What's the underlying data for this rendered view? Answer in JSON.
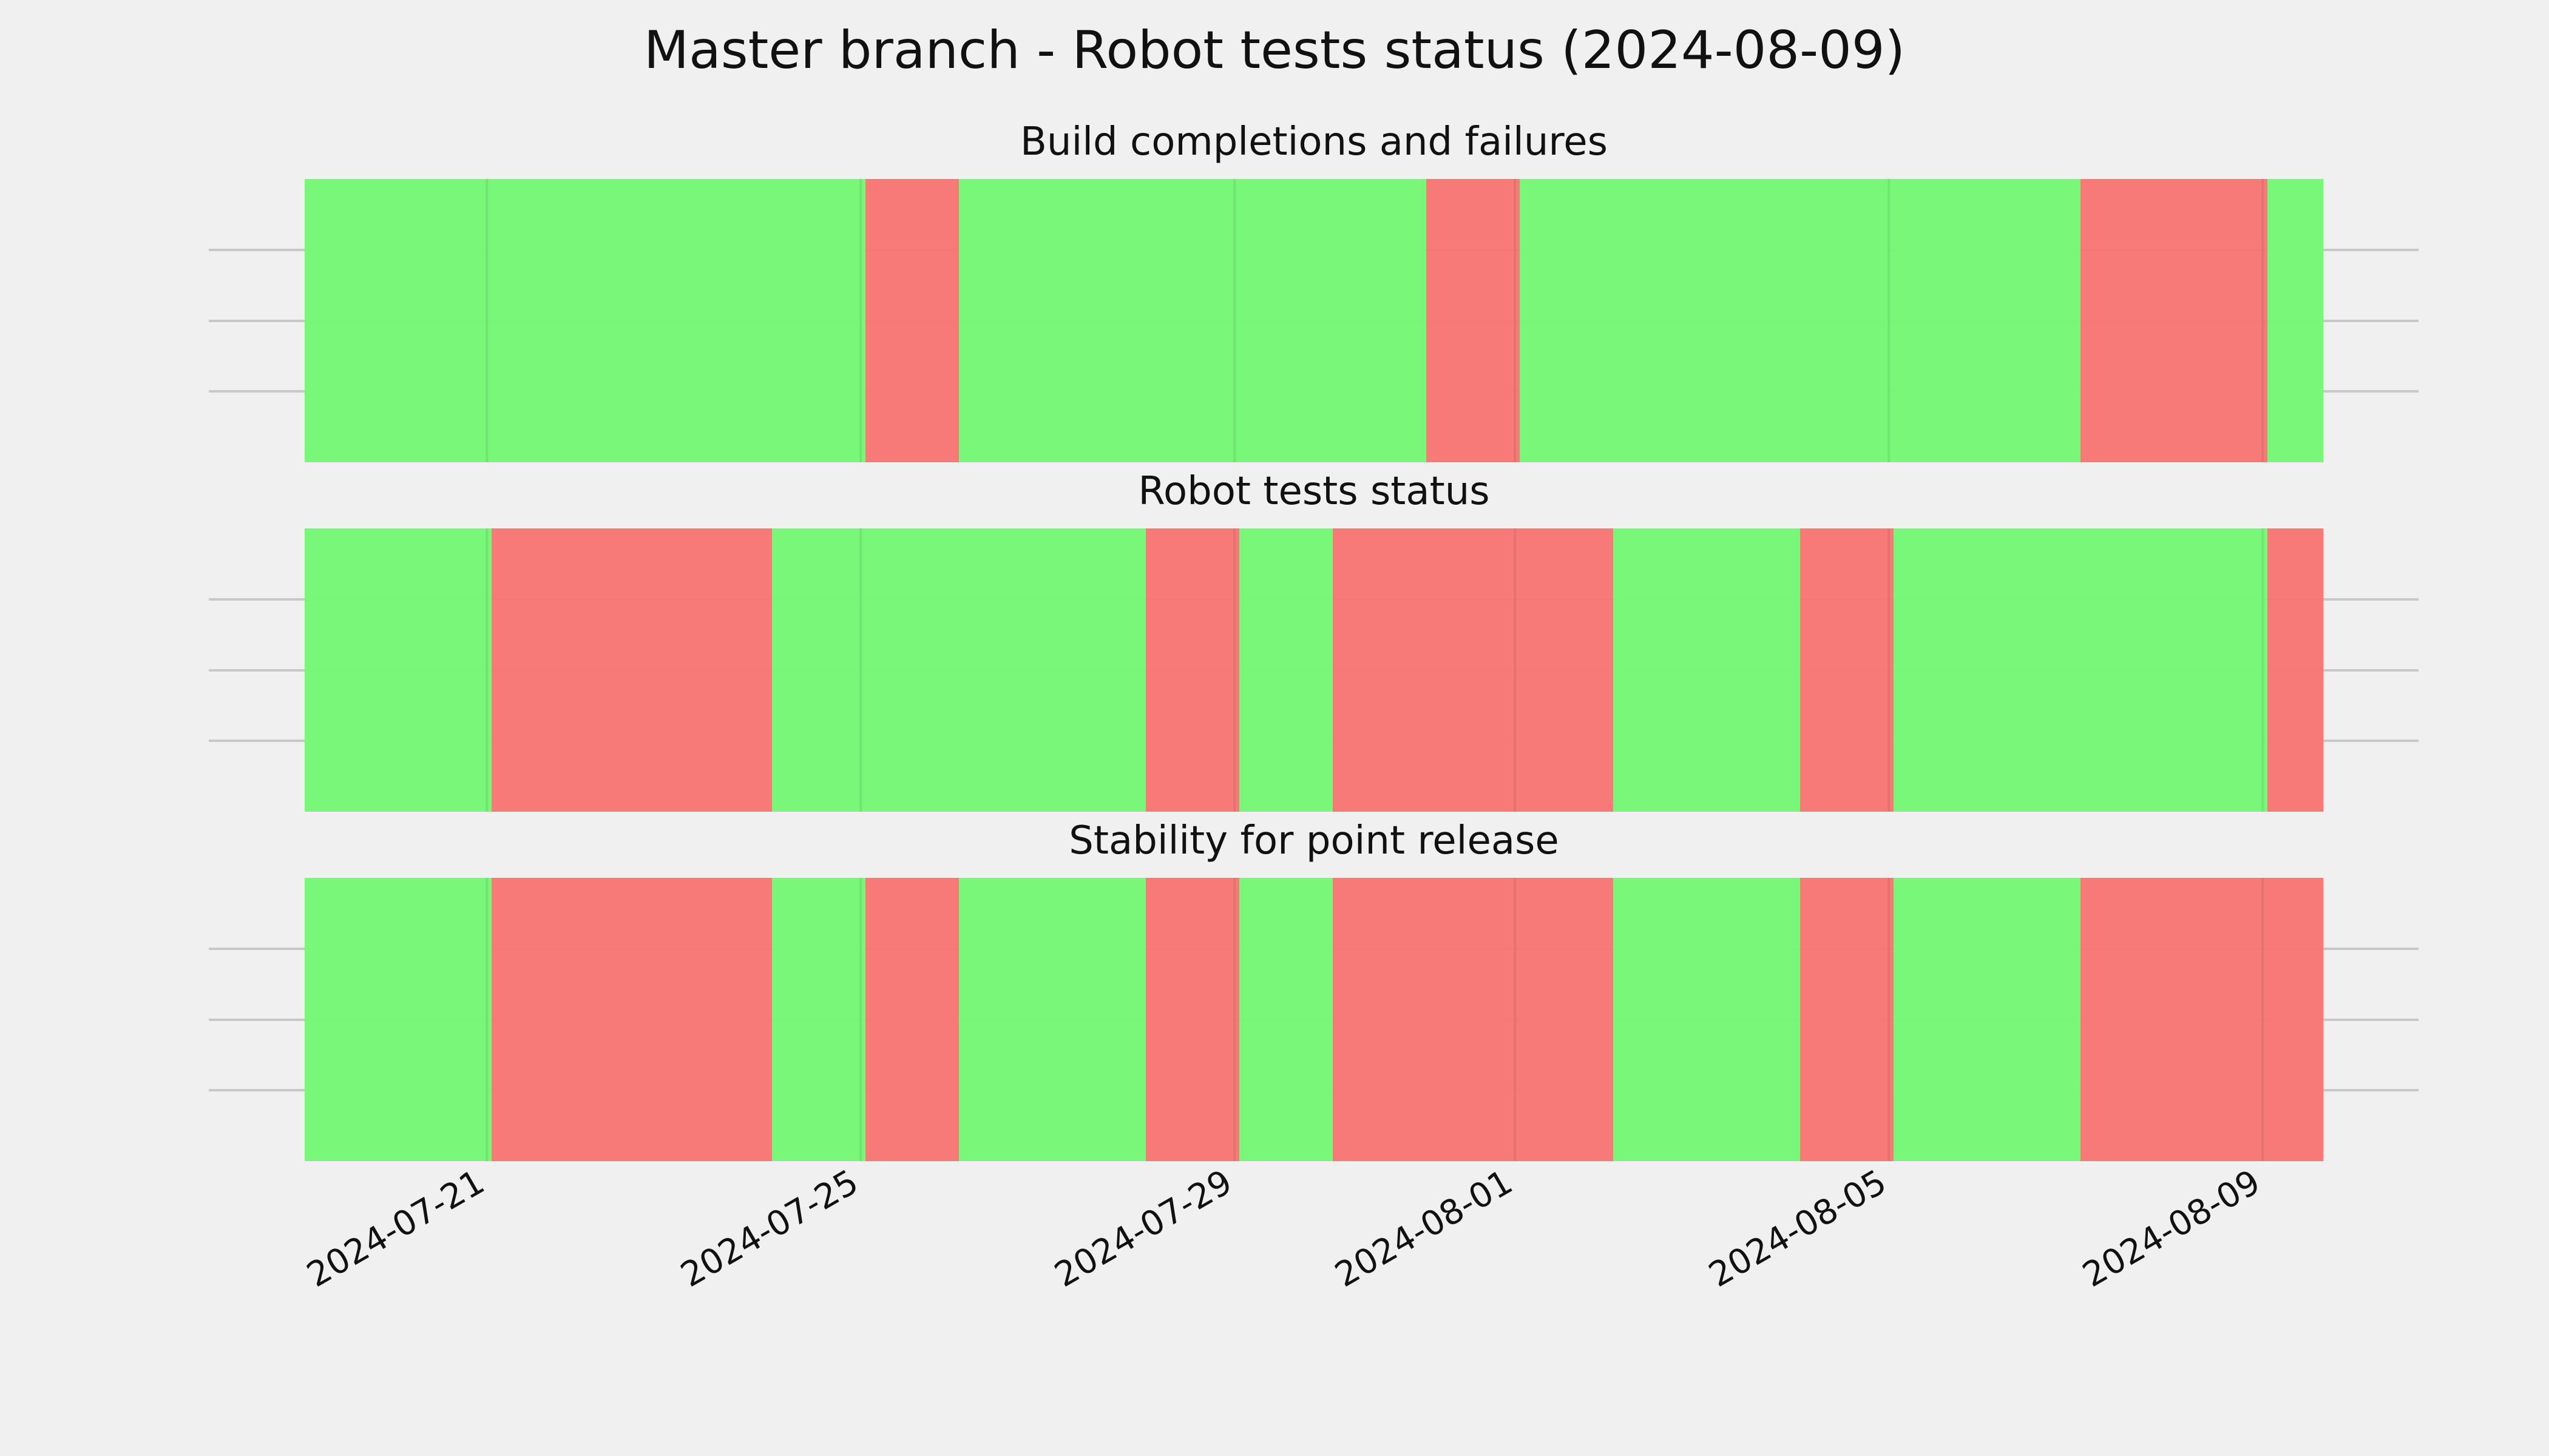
{
  "chart_data": {
    "type": "timeline",
    "title": "Master branch - Robot tests status (2024-08-09)",
    "x_range": [
      "2024-07-20",
      "2024-08-10"
    ],
    "x_ticks": [
      "2024-07-21",
      "2024-07-25",
      "2024-07-29",
      "2024-08-01",
      "2024-08-05",
      "2024-08-09"
    ],
    "tick_positions": {
      "2024-07-21": 1.95,
      "2024-07-25": 5.95,
      "2024-07-29": 9.95,
      "2024-08-01": 12.95,
      "2024-08-05": 16.95,
      "2024-08-09": 20.95
    },
    "colors": {
      "pass": "#76f776",
      "fail": "#f77776"
    },
    "panels": [
      {
        "title": "Build completions and failures",
        "segments": [
          {
            "start": 0.0,
            "end": 6.0,
            "status": "pass"
          },
          {
            "start": 6.0,
            "end": 7.0,
            "status": "fail"
          },
          {
            "start": 7.0,
            "end": 12.0,
            "status": "pass"
          },
          {
            "start": 12.0,
            "end": 13.0,
            "status": "fail"
          },
          {
            "start": 13.0,
            "end": 19.0,
            "status": "pass"
          },
          {
            "start": 19.0,
            "end": 21.0,
            "status": "fail"
          },
          {
            "start": 21.0,
            "end": 21.6,
            "status": "pass"
          }
        ]
      },
      {
        "title": "Robot tests status",
        "segments": [
          {
            "start": 0.0,
            "end": 2.0,
            "status": "pass"
          },
          {
            "start": 2.0,
            "end": 5.0,
            "status": "fail"
          },
          {
            "start": 5.0,
            "end": 9.0,
            "status": "pass"
          },
          {
            "start": 9.0,
            "end": 10.0,
            "status": "fail"
          },
          {
            "start": 10.0,
            "end": 11.0,
            "status": "pass"
          },
          {
            "start": 11.0,
            "end": 14.0,
            "status": "fail"
          },
          {
            "start": 14.0,
            "end": 16.0,
            "status": "pass"
          },
          {
            "start": 16.0,
            "end": 17.0,
            "status": "fail"
          },
          {
            "start": 17.0,
            "end": 21.0,
            "status": "pass"
          },
          {
            "start": 21.0,
            "end": 21.6,
            "status": "fail"
          }
        ]
      },
      {
        "title": "Stability for point release",
        "segments": [
          {
            "start": 0.0,
            "end": 2.0,
            "status": "pass"
          },
          {
            "start": 2.0,
            "end": 5.0,
            "status": "fail"
          },
          {
            "start": 5.0,
            "end": 6.0,
            "status": "pass"
          },
          {
            "start": 6.0,
            "end": 7.0,
            "status": "fail"
          },
          {
            "start": 7.0,
            "end": 9.0,
            "status": "pass"
          },
          {
            "start": 9.0,
            "end": 10.0,
            "status": "fail"
          },
          {
            "start": 10.0,
            "end": 11.0,
            "status": "pass"
          },
          {
            "start": 11.0,
            "end": 14.0,
            "status": "fail"
          },
          {
            "start": 14.0,
            "end": 16.0,
            "status": "pass"
          },
          {
            "start": 16.0,
            "end": 17.0,
            "status": "fail"
          },
          {
            "start": 17.0,
            "end": 19.0,
            "status": "pass"
          },
          {
            "start": 19.0,
            "end": 21.6,
            "status": "fail"
          }
        ]
      }
    ],
    "grid": true,
    "legend": "none"
  }
}
